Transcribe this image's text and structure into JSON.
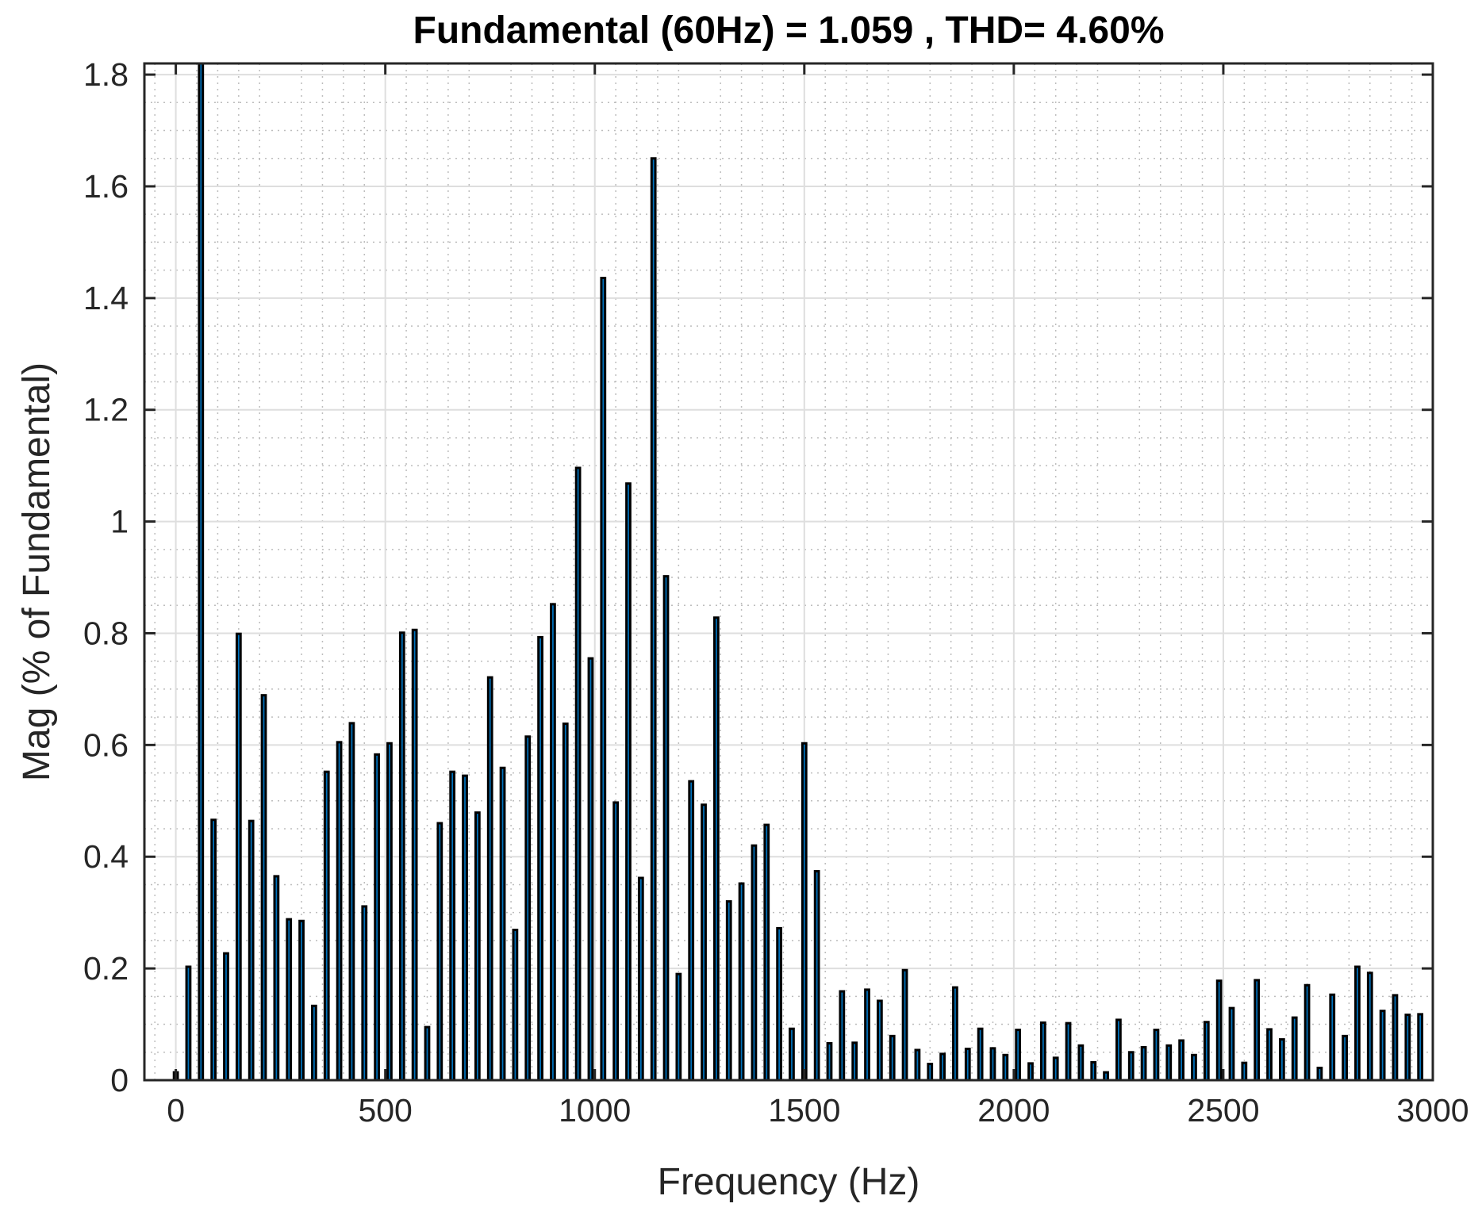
{
  "chart_data": {
    "type": "bar",
    "title": "Fundamental (60Hz) = 1.059 , THD= 4.60%",
    "xlabel": "Frequency (Hz)",
    "ylabel": "Mag (% of Fundamental)",
    "xlim": [
      -75,
      3000
    ],
    "ylim": [
      0,
      1.82
    ],
    "xticks": [
      0,
      500,
      1000,
      1500,
      2000,
      2500,
      3000
    ],
    "xtick_labels": [
      "0",
      "500",
      "1000",
      "1500",
      "2000",
      "2500",
      "3000"
    ],
    "yticks": [
      0,
      0.2,
      0.4,
      0.6,
      0.8,
      1,
      1.2,
      1.4,
      1.6,
      1.8
    ],
    "ytick_labels": [
      "0",
      "0.2",
      "0.4",
      "0.6",
      "0.8",
      "1",
      "1.2",
      "1.4",
      "1.6",
      "1.8"
    ],
    "grid": true,
    "minor_grid": true,
    "bar_color": "#0072BD",
    "bar_edge_color": "#000000",
    "bar_width_hz": 9,
    "x_step_hz": 30,
    "x": [
      0,
      30,
      60,
      90,
      120,
      150,
      180,
      210,
      240,
      270,
      300,
      330,
      360,
      390,
      420,
      450,
      480,
      510,
      540,
      570,
      600,
      630,
      660,
      690,
      720,
      750,
      780,
      810,
      840,
      870,
      900,
      930,
      960,
      990,
      1020,
      1050,
      1080,
      1110,
      1140,
      1170,
      1200,
      1230,
      1260,
      1290,
      1320,
      1350,
      1380,
      1410,
      1440,
      1470,
      1500,
      1530,
      1560,
      1590,
      1620,
      1650,
      1680,
      1710,
      1740,
      1770,
      1800,
      1830,
      1860,
      1890,
      1920,
      1950,
      1980,
      2010,
      2040,
      2070,
      2100,
      2130,
      2160,
      2190,
      2220,
      2250,
      2280,
      2310,
      2340,
      2370,
      2400,
      2430,
      2460,
      2490,
      2520,
      2550,
      2580,
      2610,
      2640,
      2670,
      2700,
      2730,
      2760,
      2790,
      2820,
      2850,
      2880,
      2910,
      2940,
      2970
    ],
    "values": [
      0.014,
      0.203,
      1.82,
      0.466,
      0.227,
      0.799,
      0.464,
      0.689,
      0.365,
      0.288,
      0.285,
      0.133,
      0.552,
      0.605,
      0.639,
      0.311,
      0.583,
      0.603,
      0.801,
      0.806,
      0.095,
      0.46,
      0.552,
      0.545,
      0.479,
      0.721,
      0.559,
      0.269,
      0.615,
      0.793,
      0.852,
      0.638,
      1.096,
      0.755,
      1.436,
      0.497,
      1.068,
      0.362,
      1.65,
      0.902,
      0.19,
      0.535,
      0.493,
      0.828,
      0.32,
      0.352,
      0.42,
      0.457,
      0.272,
      0.092,
      0.603,
      0.374,
      0.066,
      0.159,
      0.067,
      0.162,
      0.142,
      0.079,
      0.197,
      0.054,
      0.029,
      0.047,
      0.166,
      0.056,
      0.092,
      0.057,
      0.045,
      0.09,
      0.03,
      0.103,
      0.04,
      0.102,
      0.062,
      0.032,
      0.014,
      0.108,
      0.05,
      0.059,
      0.09,
      0.062,
      0.071,
      0.045,
      0.104,
      0.178,
      0.129,
      0.031,
      0.179,
      0.091,
      0.073,
      0.112,
      0.17,
      0.022,
      0.153,
      0.079,
      0.203,
      0.192,
      0.124,
      0.152,
      0.117,
      0.118
    ]
  }
}
